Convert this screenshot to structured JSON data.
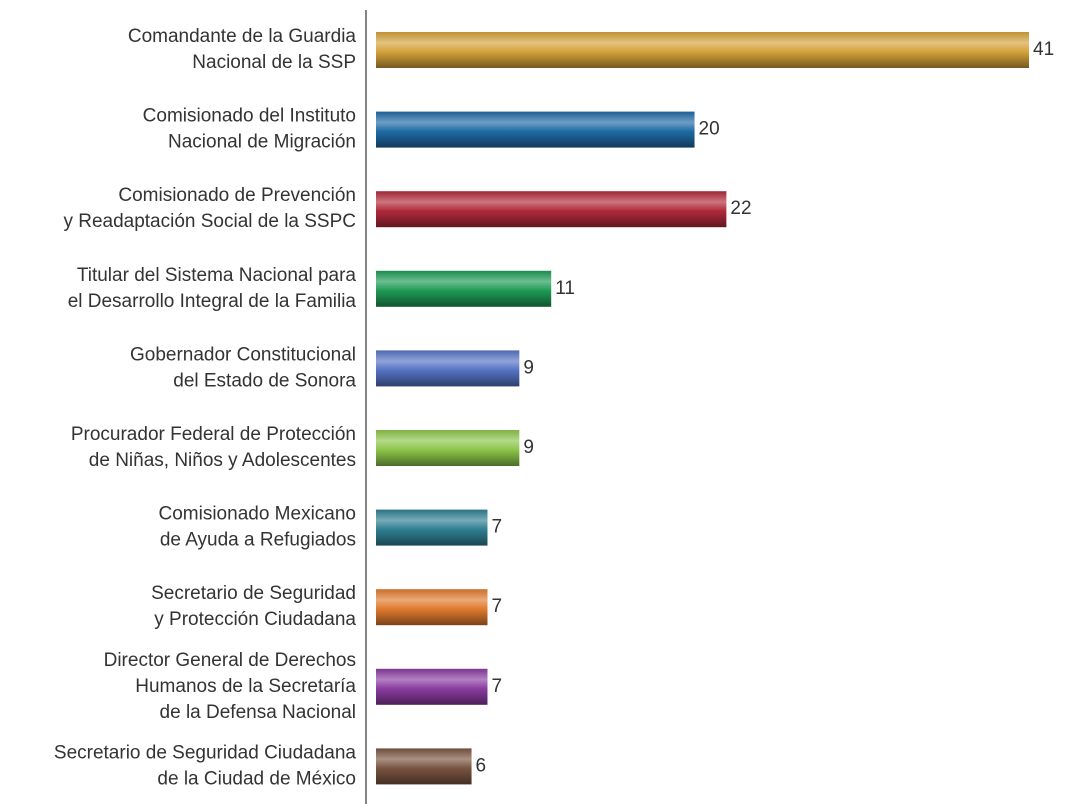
{
  "chart_data": {
    "type": "barh",
    "categories": [
      "Comandante de la Guardia\nNacional de la SSP",
      "Comisionado del Instituto\nNacional de Migración",
      "Comisionado de Prevención\ny Readaptación Social de la SSPC",
      "Titular del Sistema Nacional para\nel Desarrollo Integral de la Familia",
      "Gobernador Constitucional\ndel Estado de Sonora",
      "Procurador Federal de Protección\nde Niñas, Niños y Adolescentes",
      "Comisionado Mexicano\nde Ayuda a Refugiados",
      "Secretario de Seguridad\ny Protección Ciudadana",
      "Director General de Derechos\nHumanos de la Secretaría\nde la Defensa Nacional",
      "Secretario de Seguridad Ciudadana\nde la Ciudad de México"
    ],
    "values": [
      41,
      20,
      22,
      11,
      9,
      9,
      7,
      7,
      7,
      6
    ],
    "colors": [
      "#d4a23a",
      "#1f6aa5",
      "#b02a3a",
      "#1f9a55",
      "#5573c4",
      "#8cc54a",
      "#2f7f92",
      "#e07a2e",
      "#8a3ca0",
      "#7a5440"
    ]
  }
}
